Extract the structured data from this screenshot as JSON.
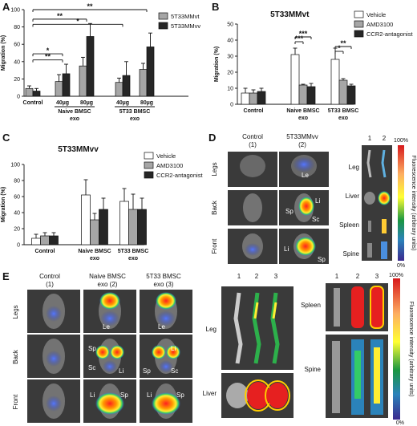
{
  "panels": {
    "A": {
      "letter": "A"
    },
    "B": {
      "letter": "B"
    },
    "C": {
      "letter": "C"
    },
    "D": {
      "letter": "D"
    },
    "E": {
      "letter": "E"
    }
  },
  "chart_data": [
    {
      "id": "A",
      "type": "bar",
      "title": "",
      "ylabel": "Migration (%)",
      "ylim": [
        0,
        100
      ],
      "yticks": [
        0,
        20,
        40,
        60,
        80,
        100
      ],
      "categories": [
        "Control",
        "40µg",
        "80µg",
        "40µg",
        "80µg"
      ],
      "groups": [
        {
          "label": "Naive BMSC\nexo",
          "line1": "Naive BMSC",
          "line2": "exo",
          "from": 1,
          "to": 2
        },
        {
          "label": "5T33 BMSC\nexo",
          "line1": "5T33 BMSC",
          "line2": "exo",
          "from": 3,
          "to": 4
        }
      ],
      "series": [
        {
          "name": "5T33MMvt",
          "color": "#a6a6a6",
          "values": [
            9,
            17,
            35,
            16,
            31
          ],
          "errors": [
            3,
            8,
            10,
            5,
            7
          ]
        },
        {
          "name": "5T33MMvv",
          "color": "#262626",
          "values": [
            6,
            26,
            69,
            24,
            57
          ],
          "errors": [
            3,
            11,
            15,
            16,
            16
          ]
        }
      ],
      "significance": [
        {
          "label": "*",
          "from": 0,
          "to": 2,
          "y": 49
        },
        {
          "label": "**",
          "from": 0,
          "to": 2,
          "y": 42
        },
        {
          "label": "*",
          "from": 0,
          "to": 4,
          "y": 83
        },
        {
          "label": "**",
          "from": 0,
          "to": 2,
          "y": 89
        },
        {
          "label": "**",
          "from": 0,
          "to": 4,
          "y": 100
        }
      ]
    },
    {
      "id": "B",
      "type": "bar",
      "title": "5T33MMvt",
      "ylabel": "Migration (%)",
      "ylim": [
        0,
        50
      ],
      "yticks": [
        0,
        10,
        20,
        30,
        40,
        50
      ],
      "categories": [
        "Control",
        "Naive BMSC\nexo",
        "5T33 BMSC\nexo"
      ],
      "series": [
        {
          "name": "Vehicle",
          "color": "#ffffff",
          "values": [
            7,
            31,
            28
          ],
          "errors": [
            3,
            4,
            7
          ]
        },
        {
          "name": "AMD3100",
          "color": "#a6a6a6",
          "values": [
            7,
            12,
            15
          ],
          "errors": [
            2,
            0.5,
            1
          ]
        },
        {
          "name": "CCR2-antagonist",
          "color": "#262626",
          "values": [
            8,
            11,
            11.5
          ],
          "errors": [
            2,
            2,
            1
          ]
        }
      ],
      "significance": [
        {
          "label": "***",
          "group": 1,
          "from": 0,
          "to": 1,
          "y": 39
        },
        {
          "label": "***",
          "group": 1,
          "from": 0,
          "to": 2,
          "y": 42
        },
        {
          "label": "*",
          "group": 2,
          "from": 0,
          "to": 1,
          "y": 33
        },
        {
          "label": "**",
          "group": 2,
          "from": 0,
          "to": 2,
          "y": 36
        }
      ]
    },
    {
      "id": "C",
      "type": "bar",
      "title": "5T33MMvv",
      "ylabel": "Migration (%)",
      "ylim": [
        0,
        100
      ],
      "yticks": [
        0,
        20,
        40,
        60,
        80,
        100
      ],
      "categories": [
        "Control",
        "Naive BMSC\nexo",
        "5T33 BMSC\nexo"
      ],
      "series": [
        {
          "name": "Vehicle",
          "color": "#ffffff",
          "values": [
            8,
            62,
            54
          ],
          "errors": [
            5,
            19,
            16
          ]
        },
        {
          "name": "AMD3100",
          "color": "#a6a6a6",
          "values": [
            11,
            31,
            44
          ],
          "errors": [
            4,
            8,
            19
          ]
        },
        {
          "name": "CCR2-antagonist",
          "color": "#262626",
          "values": [
            11,
            44,
            44
          ],
          "errors": [
            4,
            14,
            14
          ]
        }
      ],
      "significance": []
    }
  ],
  "D": {
    "headers": {
      "control": "Control",
      "control_num": "(1)",
      "vv": "5T33MMvv",
      "vv_num": "(2)"
    },
    "rows": [
      "Legs",
      "Back",
      "Front"
    ],
    "labels": {
      "le": "Le",
      "li": "Li",
      "sp": "Sp",
      "sc": "Sc"
    },
    "organs": [
      "Leg",
      "Liver",
      "Spleen",
      "Spine"
    ],
    "cols": [
      "1",
      "2"
    ],
    "colorbar": {
      "max": "100%",
      "min": "0%",
      "title": "Fluorescence intensity (arbitrary units)"
    }
  },
  "E": {
    "headers": [
      {
        "line1": "Control",
        "line2": "(1)"
      },
      {
        "line1": "Naive BMSC",
        "line2": "exo (2)"
      },
      {
        "line1": "5T33 BMSC",
        "line2": "exo (3)"
      }
    ],
    "rows": [
      "Legs",
      "Back",
      "Front"
    ],
    "labels": {
      "le": "Le",
      "li": "Li",
      "sp": "Sp",
      "sc": "Sc"
    },
    "organs_left": [
      "Leg",
      "Liver"
    ],
    "organs_right": [
      "Spleen",
      "Spine"
    ],
    "cols": [
      "1",
      "2",
      "3"
    ],
    "colorbar": {
      "max": "100%",
      "min": "0%",
      "title": "Fluorescence intensity (arbitrary units)"
    }
  },
  "colors": {
    "bar_dark": "#262626",
    "bar_grey": "#a6a6a6",
    "bar_white": "#ffffff",
    "imaging_bg": "#3a3a3a"
  }
}
